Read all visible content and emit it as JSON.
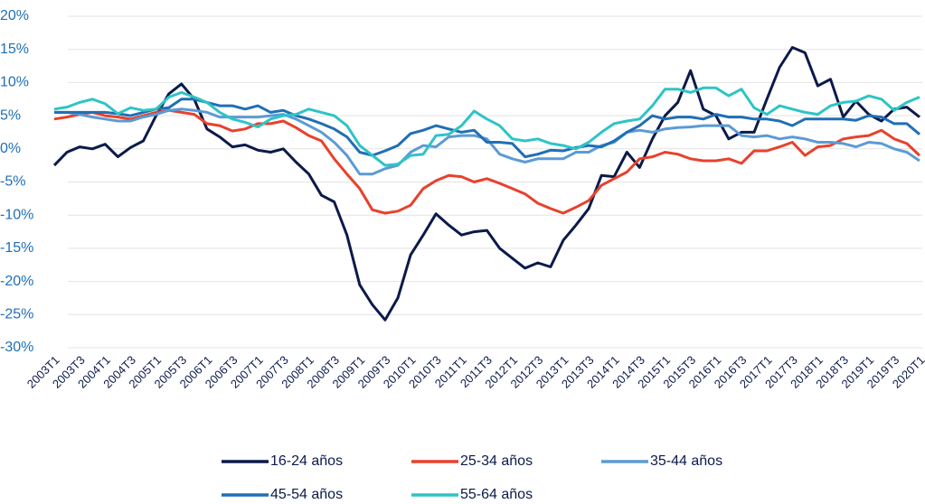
{
  "chart_data": {
    "type": "line",
    "categories": [
      "2003T1",
      null,
      "2003T3",
      null,
      "2004T1",
      null,
      "2004T3",
      null,
      "2005T1",
      null,
      "2005T3",
      null,
      "2006T1",
      null,
      "2006T3",
      null,
      "2007T1",
      null,
      "2007T3",
      null,
      "2008T1",
      null,
      "2008T3",
      null,
      "2009T1",
      null,
      "2009T3",
      null,
      "2010T1",
      null,
      "2010T3",
      null,
      "2011T1",
      null,
      "2011T3",
      null,
      "2012T1",
      null,
      "2012T3",
      null,
      "2013T1",
      null,
      "2013T3",
      null,
      "2014T1",
      null,
      "2014T3",
      null,
      "2015T1",
      null,
      "2015T3",
      null,
      "2016T1",
      null,
      "2016T3",
      null,
      "2017T1",
      null,
      "2017T3",
      null,
      "2018T1",
      null,
      "2018T3",
      null,
      "2019T1",
      null,
      "2019T3",
      null,
      "2020T1"
    ],
    "series": [
      {
        "name": "16-24 años",
        "color": "#0b1a4a",
        "values": [
          -2.5,
          -0.5,
          0.3,
          0,
          0.7,
          -1.2,
          0.2,
          1.2,
          5,
          8.3,
          9.8,
          7.5,
          3,
          1.8,
          0.3,
          0.6,
          -0.2,
          -0.5,
          0,
          -2,
          -3.8,
          -7,
          -8,
          -13,
          -20.5,
          -23.5,
          -25.8,
          -22.5,
          -16,
          -13,
          -9.8,
          -11.5,
          -13,
          -12.5,
          -12.3,
          -15,
          -16.5,
          -18,
          -17.2,
          -17.8,
          -13.8,
          -11.5,
          -9,
          -4,
          -4.2,
          -0.5,
          -2.8,
          1.5,
          5,
          7,
          11.8,
          6,
          5,
          1.5,
          2.5,
          2.5,
          7.5,
          12.3,
          15.3,
          14.5,
          9.5,
          10.5,
          4.8,
          7.2,
          5.2,
          4.2,
          6,
          6.3,
          4.8
        ]
      },
      {
        "name": "25-34 años",
        "color": "#e8412c",
        "values": [
          4.5,
          4.8,
          5.2,
          5.5,
          5,
          4.8,
          4.5,
          5,
          5.5,
          5.8,
          5.5,
          5.2,
          3.8,
          3.5,
          2.7,
          3,
          3.8,
          3.8,
          4.2,
          3.2,
          2,
          1.2,
          -1.5,
          -3.8,
          -6,
          -9.2,
          -9.7,
          -9.4,
          -8.5,
          -6,
          -4.8,
          -4,
          -4.2,
          -5,
          -4.5,
          -5.2,
          -6,
          -6.8,
          -8.2,
          -9,
          -9.7,
          -8.8,
          -7.8,
          -5.5,
          -4.5,
          -3.5,
          -1.5,
          -1.2,
          -0.5,
          -0.8,
          -1.5,
          -1.8,
          -1.8,
          -1.5,
          -2.2,
          -0.3,
          -0.3,
          0.3,
          1,
          -1,
          0.3,
          0.5,
          1.5,
          1.8,
          2,
          2.8,
          1.5,
          0.8,
          -1
        ]
      },
      {
        "name": "35-44 años",
        "color": "#5b9bd5",
        "values": [
          5.5,
          5.5,
          5.2,
          4.8,
          4.5,
          4.2,
          4.2,
          4.8,
          5.2,
          5.8,
          6,
          5.8,
          5.5,
          4.8,
          4.8,
          4.8,
          4.8,
          5,
          5.2,
          4.5,
          3.5,
          2.5,
          1,
          -1,
          -3.8,
          -3.8,
          -3,
          -2.5,
          -0.5,
          0.5,
          0.3,
          1.8,
          2,
          2,
          1.5,
          -0.8,
          -1.5,
          -2,
          -1.5,
          -1.5,
          -1.5,
          -0.5,
          -0.5,
          0.5,
          1,
          2.5,
          2.8,
          2.5,
          3,
          3.2,
          3.3,
          3.5,
          3.5,
          3.5,
          2,
          1.8,
          2,
          1.5,
          1.8,
          1.5,
          1,
          1,
          0.8,
          0.3,
          1,
          0.8,
          0,
          -0.5,
          -1.8
        ]
      },
      {
        "name": "45-54 años",
        "color": "#1f6fb5",
        "values": [
          5.5,
          5.5,
          5.5,
          5.5,
          5.5,
          5.3,
          5,
          5.5,
          6,
          6.2,
          7.5,
          7.5,
          7,
          6.5,
          6.5,
          6,
          6.5,
          5.5,
          5.8,
          5,
          4.5,
          3.8,
          3,
          1.8,
          -0.5,
          -1,
          -0.3,
          0.5,
          2.3,
          2.8,
          3.5,
          3,
          2.5,
          2.8,
          1,
          1,
          0.8,
          -1.2,
          -0.8,
          -0.2,
          -0.3,
          0.2,
          0.5,
          0.3,
          1.2,
          2.5,
          3.5,
          5,
          4.5,
          4.8,
          4.8,
          4.5,
          5.2,
          4.8,
          4.8,
          4.5,
          4.5,
          4.2,
          3.5,
          4.5,
          4.5,
          4.5,
          4.5,
          4.3,
          5,
          4.8,
          3.8,
          3.8,
          2.2
        ]
      },
      {
        "name": "55-64 años",
        "color": "#2ec4c6",
        "values": [
          6,
          6.3,
          7,
          7.5,
          6.8,
          5.3,
          6.2,
          5.8,
          6,
          7.8,
          8.5,
          7.8,
          7,
          5.5,
          4.5,
          4,
          3.3,
          4.5,
          5,
          5.2,
          6,
          5.5,
          5,
          3.5,
          0.5,
          -1,
          -2.5,
          -2.3,
          -1,
          -0.8,
          2,
          2.2,
          3.5,
          5.7,
          4.5,
          3.5,
          1.5,
          1.2,
          1.5,
          0.8,
          0.5,
          0,
          1,
          2.5,
          3.8,
          4.2,
          4.5,
          6.5,
          9,
          9,
          8.5,
          9.2,
          9.2,
          8,
          9,
          6.2,
          5.2,
          6.5,
          6,
          5.5,
          5.2,
          6.5,
          7,
          7.2,
          8,
          7.5,
          5.8,
          7,
          7.8
        ]
      }
    ],
    "ylim": [
      -30,
      20
    ],
    "yticks": [
      {
        "value": -30,
        "label": "-30%"
      },
      {
        "value": -25,
        "label": "-25%"
      },
      {
        "value": -20,
        "label": "-20%"
      },
      {
        "value": -15,
        "label": "-15%"
      },
      {
        "value": -10,
        "label": "-10%"
      },
      {
        "value": -5,
        "label": "-5%"
      },
      {
        "value": 0,
        "label": "0%"
      },
      {
        "value": 5,
        "label": "5%"
      },
      {
        "value": 10,
        "label": "10%"
      },
      {
        "value": 15,
        "label": "15%"
      },
      {
        "value": 20,
        "label": "20%"
      }
    ],
    "grid": true
  }
}
